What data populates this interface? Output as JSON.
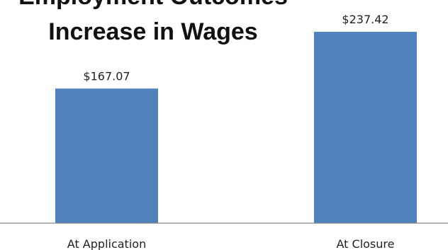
{
  "chart_data": {
    "type": "bar",
    "title": [
      "Employment Outcomes",
      "Increase in Wages"
    ],
    "categories": [
      "At Application",
      "At Closure"
    ],
    "values": [
      167.07,
      237.42
    ],
    "data_labels": [
      "$167.07",
      "$237.42"
    ],
    "xlabel": "",
    "ylabel": "",
    "ylim": [
      0,
      250
    ],
    "grid": false,
    "legend": "none",
    "bar_color": "#4F81BD",
    "axis_color": "#888888"
  }
}
